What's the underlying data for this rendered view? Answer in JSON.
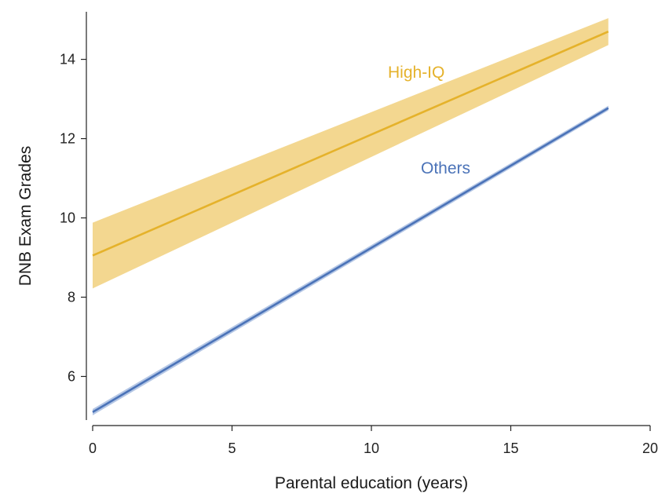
{
  "chart_data": {
    "type": "line",
    "title": "",
    "xlabel": "Parental education (years)",
    "ylabel": "DNB Exam Grades",
    "xlim": [
      0,
      20
    ],
    "ylim": [
      4.9,
      15.2
    ],
    "x_ticks": [
      "0",
      "5",
      "10",
      "15",
      "20"
    ],
    "y_ticks": [
      "6",
      "8",
      "10",
      "12",
      "14"
    ],
    "grid": false,
    "legend": "inline labels",
    "series": [
      {
        "name": "High-IQ",
        "color": "#e5b22b",
        "band_color": "#f1d07c",
        "x": [
          0,
          18.5
        ],
        "y": [
          9.05,
          14.7
        ],
        "ci_lower": [
          8.22,
          14.36
        ],
        "ci_upper": [
          9.88,
          15.04
        ]
      },
      {
        "name": "Others",
        "color": "#4b73b8",
        "band_color": "#a8bde0",
        "x": [
          0,
          18.5
        ],
        "y": [
          5.1,
          12.77
        ],
        "ci_lower": [
          5.02,
          12.71
        ],
        "ci_upper": [
          5.18,
          12.83
        ]
      }
    ]
  }
}
